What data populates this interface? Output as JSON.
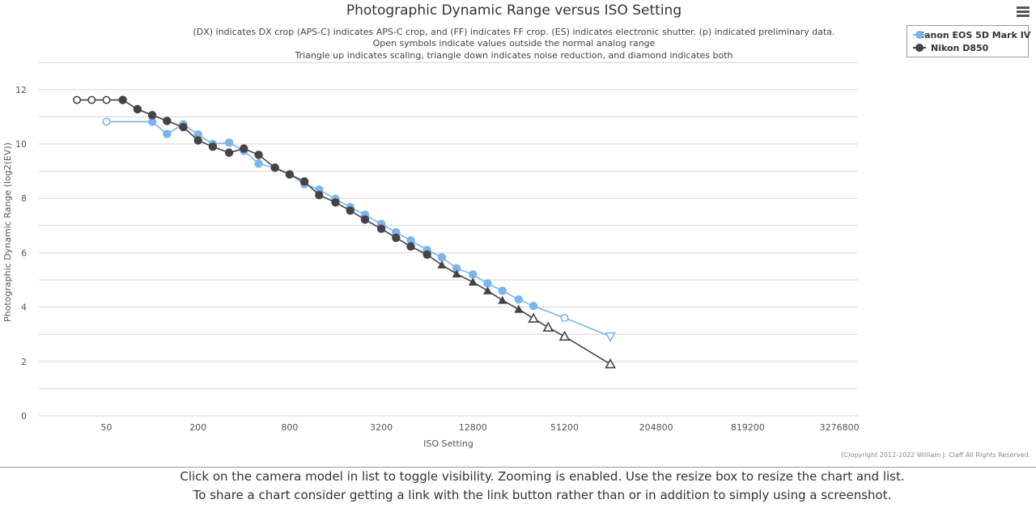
{
  "chart_data": {
    "type": "line",
    "title": "Photographic Dynamic Range versus ISO Setting",
    "subtitle_lines": [
      "(DX) indicates DX crop (APS-C) indicates APS-C crop, and (FF) indicates FF crop. (ES) indicates electronic shutter. (p) indicated preliminary data.",
      "Open symbols indicate values outside the normal analog range",
      "Triangle up indicates scaling, triangle down indicates noise reduction, and diamond indicates both"
    ],
    "xlabel": "ISO Setting",
    "ylabel": "Photographic Dynamic Range (log2(EV))",
    "x_scale": "log2",
    "xlim": [
      25,
      5000000
    ],
    "ylim": [
      0,
      13
    ],
    "x_ticks": [
      {
        "value": 50,
        "label": "50"
      },
      {
        "value": 200,
        "label": "200"
      },
      {
        "value": 800,
        "label": "800"
      },
      {
        "value": 3200,
        "label": "3200"
      },
      {
        "value": 12800,
        "label": "12800"
      },
      {
        "value": 51200,
        "label": "51200"
      },
      {
        "value": 204800,
        "label": "204800"
      },
      {
        "value": 819200,
        "label": "819200"
      },
      {
        "value": 3276800,
        "label": "3276800"
      }
    ],
    "y_ticks": [
      {
        "value": 0,
        "label": "0"
      },
      {
        "value": 2,
        "label": "2"
      },
      {
        "value": 4,
        "label": "4"
      },
      {
        "value": 6,
        "label": "6"
      },
      {
        "value": 8,
        "label": "8"
      },
      {
        "value": 10,
        "label": "10"
      },
      {
        "value": 12,
        "label": "12"
      }
    ],
    "series": [
      {
        "name": "Canon EOS 5D Mark IV",
        "color": "#7cb5ec",
        "points": [
          {
            "x": 50,
            "y": 10.82,
            "marker": "open-circle"
          },
          {
            "x": 100,
            "y": 10.82,
            "marker": "circle"
          },
          {
            "x": 125,
            "y": 10.37,
            "marker": "circle"
          },
          {
            "x": 160,
            "y": 10.72,
            "marker": "circle"
          },
          {
            "x": 200,
            "y": 10.35,
            "marker": "circle"
          },
          {
            "x": 250,
            "y": 10.0,
            "marker": "circle"
          },
          {
            "x": 320,
            "y": 10.05,
            "marker": "circle"
          },
          {
            "x": 400,
            "y": 9.75,
            "marker": "circle"
          },
          {
            "x": 500,
            "y": 9.28,
            "marker": "circle"
          },
          {
            "x": 640,
            "y": 9.12,
            "marker": "circle"
          },
          {
            "x": 800,
            "y": 8.88,
            "marker": "circle"
          },
          {
            "x": 1000,
            "y": 8.52,
            "marker": "circle"
          },
          {
            "x": 1250,
            "y": 8.32,
            "marker": "circle"
          },
          {
            "x": 1600,
            "y": 7.98,
            "marker": "circle"
          },
          {
            "x": 2000,
            "y": 7.68,
            "marker": "circle"
          },
          {
            "x": 2500,
            "y": 7.4,
            "marker": "circle"
          },
          {
            "x": 3200,
            "y": 7.06,
            "marker": "circle"
          },
          {
            "x": 4000,
            "y": 6.75,
            "marker": "circle"
          },
          {
            "x": 5000,
            "y": 6.45,
            "marker": "circle"
          },
          {
            "x": 6400,
            "y": 6.1,
            "marker": "circle"
          },
          {
            "x": 8000,
            "y": 5.83,
            "marker": "circle"
          },
          {
            "x": 10000,
            "y": 5.43,
            "marker": "circle"
          },
          {
            "x": 12800,
            "y": 5.2,
            "marker": "circle"
          },
          {
            "x": 16000,
            "y": 4.87,
            "marker": "circle"
          },
          {
            "x": 20000,
            "y": 4.6,
            "marker": "circle"
          },
          {
            "x": 25600,
            "y": 4.28,
            "marker": "circle"
          },
          {
            "x": 32000,
            "y": 4.04,
            "marker": "circle"
          },
          {
            "x": 51200,
            "y": 3.6,
            "marker": "open-circle"
          },
          {
            "x": 102400,
            "y": 2.92,
            "marker": "open-triangle-down"
          }
        ]
      },
      {
        "name": "Nikon D850",
        "color": "#434348",
        "points": [
          {
            "x": 32,
            "y": 11.62,
            "marker": "open-circle"
          },
          {
            "x": 40,
            "y": 11.62,
            "marker": "open-circle"
          },
          {
            "x": 50,
            "y": 11.62,
            "marker": "open-circle"
          },
          {
            "x": 64,
            "y": 11.62,
            "marker": "circle"
          },
          {
            "x": 80,
            "y": 11.28,
            "marker": "circle"
          },
          {
            "x": 100,
            "y": 11.06,
            "marker": "circle"
          },
          {
            "x": 125,
            "y": 10.85,
            "marker": "circle"
          },
          {
            "x": 160,
            "y": 10.62,
            "marker": "circle"
          },
          {
            "x": 200,
            "y": 10.13,
            "marker": "circle"
          },
          {
            "x": 250,
            "y": 9.9,
            "marker": "circle"
          },
          {
            "x": 320,
            "y": 9.68,
            "marker": "circle"
          },
          {
            "x": 400,
            "y": 9.83,
            "marker": "circle"
          },
          {
            "x": 500,
            "y": 9.6,
            "marker": "circle"
          },
          {
            "x": 640,
            "y": 9.13,
            "marker": "circle"
          },
          {
            "x": 800,
            "y": 8.88,
            "marker": "circle"
          },
          {
            "x": 1000,
            "y": 8.62,
            "marker": "circle"
          },
          {
            "x": 1250,
            "y": 8.12,
            "marker": "circle"
          },
          {
            "x": 1600,
            "y": 7.85,
            "marker": "circle"
          },
          {
            "x": 2000,
            "y": 7.55,
            "marker": "circle"
          },
          {
            "x": 2500,
            "y": 7.22,
            "marker": "circle"
          },
          {
            "x": 3200,
            "y": 6.88,
            "marker": "circle"
          },
          {
            "x": 4000,
            "y": 6.55,
            "marker": "circle"
          },
          {
            "x": 5000,
            "y": 6.23,
            "marker": "circle"
          },
          {
            "x": 6400,
            "y": 5.93,
            "marker": "circle"
          },
          {
            "x": 8000,
            "y": 5.55,
            "marker": "triangle-up"
          },
          {
            "x": 10000,
            "y": 5.22,
            "marker": "triangle-up"
          },
          {
            "x": 12800,
            "y": 4.92,
            "marker": "triangle-up"
          },
          {
            "x": 16000,
            "y": 4.6,
            "marker": "triangle-up"
          },
          {
            "x": 20000,
            "y": 4.25,
            "marker": "triangle-up"
          },
          {
            "x": 25600,
            "y": 3.92,
            "marker": "triangle-up"
          },
          {
            "x": 32000,
            "y": 3.58,
            "marker": "open-triangle-up"
          },
          {
            "x": 40000,
            "y": 3.25,
            "marker": "open-triangle-up"
          },
          {
            "x": 51200,
            "y": 2.92,
            "marker": "open-triangle-up"
          },
          {
            "x": 102400,
            "y": 1.9,
            "marker": "open-triangle-up"
          }
        ]
      }
    ],
    "legend_position": "top-right",
    "credits": "(C)opyright 2012-2022 William J. Claff All Rights Reserved."
  },
  "menu": {
    "icon": "hamburger-menu-icon"
  },
  "notes": {
    "line1": "Click on the camera model in list to toggle visibility. Zooming is enabled. Use the resize box to resize the chart and list.",
    "line2": "To share a chart consider getting a link with the link button rather than or in addition to simply using a screenshot."
  }
}
